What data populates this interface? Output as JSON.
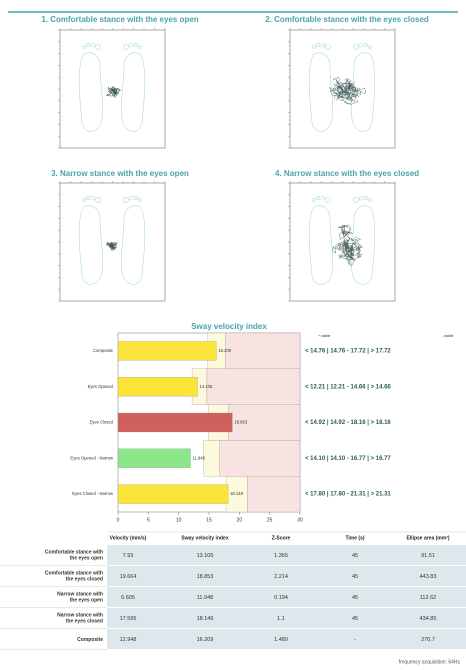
{
  "panels": [
    {
      "title": "1. Comfortable stance with the eyes open"
    },
    {
      "title": "2. Comfortable stance with the eyes closed"
    },
    {
      "title": "3. Narrow stance with the eyes open"
    },
    {
      "title": "4. Narrow stance with the eyes closed"
    }
  ],
  "chart_data": {
    "type": "bar",
    "orientation": "horizontal",
    "title": "Sway velocity index",
    "categories": [
      "Composite",
      "Eyes Opened",
      "Eyes Closed",
      "Eyes Opened - Narrow",
      "Eyes Closed - Narrow"
    ],
    "values": [
      16.209,
      13.105,
      18.853,
      11.948,
      18.149
    ],
    "colors": [
      "#fbe43a",
      "#fbe43a",
      "#d06060",
      "#8ee68a",
      "#fbe43a"
    ],
    "zones": [
      [
        14.76,
        17.72
      ],
      [
        12.21,
        14.66
      ],
      [
        14.92,
        18.16
      ],
      [
        14.1,
        16.77
      ],
      [
        17.8,
        21.31
      ]
    ],
    "zone_labels": [
      "< 14.76 | 14.76 - 17.72 | > 17.72",
      "< 12.21 | 12.21 - 14.66 | > 14.66",
      "< 14.92 | 14.92 - 18.16 | > 18.16",
      "< 14.10 | 14.10 - 16.77 | > 16.77",
      "< 17.80 | 17.80 - 21.31 | > 21.31"
    ],
    "xlim": [
      0,
      30
    ],
    "xticks": [
      0,
      5,
      10,
      15,
      20,
      25,
      30
    ],
    "legend": {
      "stable": "+ stable",
      "unstable": "- stable"
    }
  },
  "table": {
    "header": [
      "Velocity (mm/s)",
      "Sway velocity index",
      "Z-Score",
      "Time (s)",
      "Ellipse area (mm²)"
    ],
    "rows": [
      [
        "Comfortable stance with the eyes open",
        "7.93",
        "13.105",
        "1.365",
        "45",
        "91.51"
      ],
      [
        "Comfortable stance with the eyes closed",
        "19.664",
        "18.853",
        "2.214",
        "45",
        "443.83"
      ],
      [
        "Narrow stance with the eyes open",
        "6.605",
        "11.948",
        "0.194",
        "45",
        "112.62"
      ],
      [
        "Narrow stance with the eyes closed",
        "17.595",
        "18.149",
        "1.1",
        "45",
        "434.85"
      ],
      [
        "Composite",
        "12.948",
        "16.209",
        "1.489",
        "-",
        "270.7"
      ]
    ]
  },
  "footer": "frequency acquisition: 64Hz"
}
